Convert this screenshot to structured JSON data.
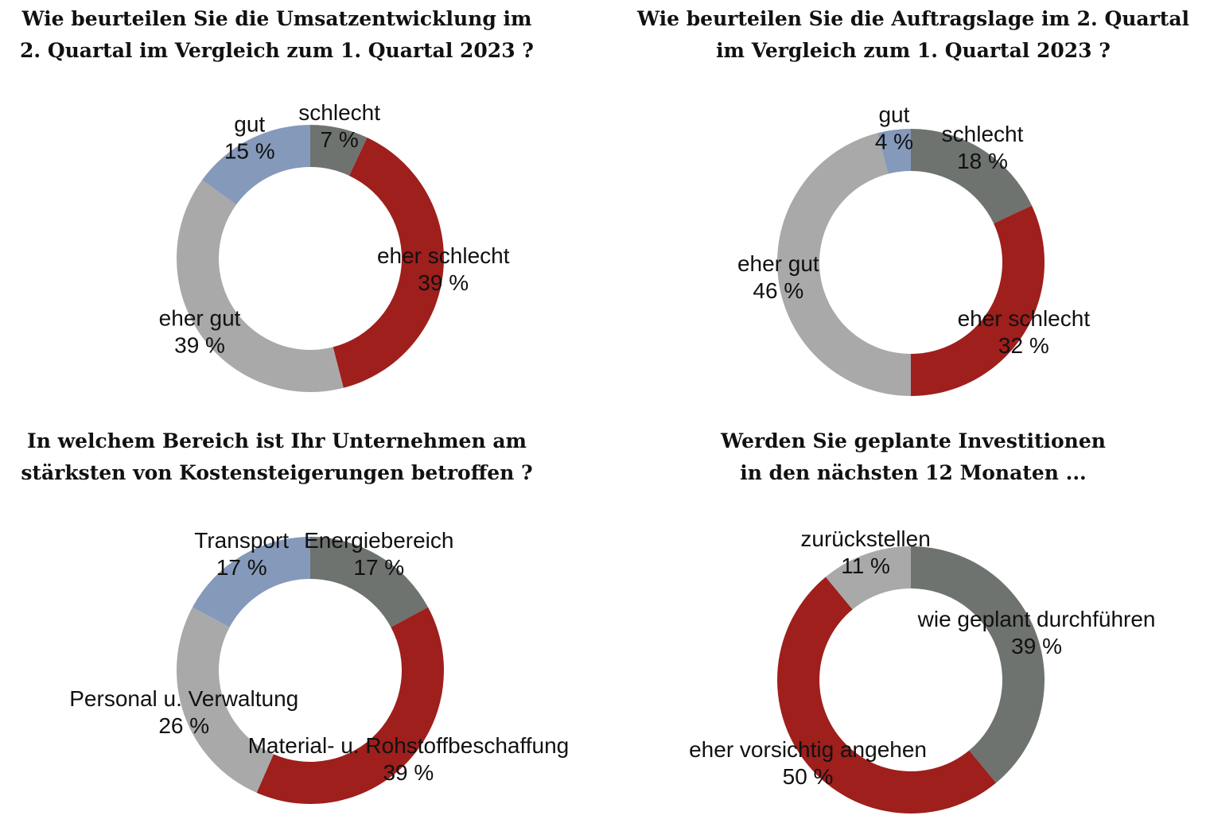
{
  "chart_data": [
    {
      "type": "pie",
      "donut": true,
      "title": [
        "Wie beurteilen Sie die Umsatzentwicklung im",
        "2. Quartal im Vergleich zum 1. Quartal 2023 ?"
      ],
      "categories": [
        "schlecht",
        "eher schlecht",
        "eher gut",
        "gut"
      ],
      "values": [
        7,
        39,
        39,
        15
      ],
      "value_labels": [
        "7 %",
        "39 %",
        "39 %",
        "15 %"
      ],
      "colors": [
        "#6e7370",
        "#9e1f1c",
        "#a9a9a9",
        "#8599ba"
      ]
    },
    {
      "type": "pie",
      "donut": true,
      "title": [
        "Wie beurteilen Sie die Auftragslage im 2. Quartal",
        "im Vergleich zum 1. Quartal 2023 ?"
      ],
      "categories": [
        "schlecht",
        "eher schlecht",
        "eher gut",
        "gut"
      ],
      "values": [
        18,
        32,
        46,
        4
      ],
      "value_labels": [
        "18 %",
        "32 %",
        "46 %",
        "4 %"
      ],
      "colors": [
        "#6e7370",
        "#9e1f1c",
        "#a9a9a9",
        "#8599ba"
      ]
    },
    {
      "type": "pie",
      "donut": true,
      "title": [
        "In welchem Bereich ist Ihr Unternehmen am",
        "stärksten von Kostensteigerungen betroffen ?"
      ],
      "categories": [
        "Energiebereich",
        "Material- u. Rohstoffbeschaffung",
        "Personal u. Verwaltung",
        "Transport"
      ],
      "values": [
        17,
        39,
        26,
        17
      ],
      "value_labels": [
        "17 %",
        "39 %",
        "26 %",
        "17 %"
      ],
      "colors": [
        "#6e7370",
        "#9e1f1c",
        "#a9a9a9",
        "#8599ba"
      ]
    },
    {
      "type": "pie",
      "donut": true,
      "title": [
        "Werden Sie geplante Investitionen",
        "in den nächsten 12 Monaten ..."
      ],
      "categories": [
        "wie geplant durchführen",
        "eher vorsichtig angehen",
        "zurückstellen"
      ],
      "values": [
        39,
        50,
        11
      ],
      "value_labels": [
        "39 %",
        "50 %",
        "11 %"
      ],
      "colors": [
        "#6e7370",
        "#9e1f1c",
        "#a9a9a9"
      ]
    }
  ]
}
